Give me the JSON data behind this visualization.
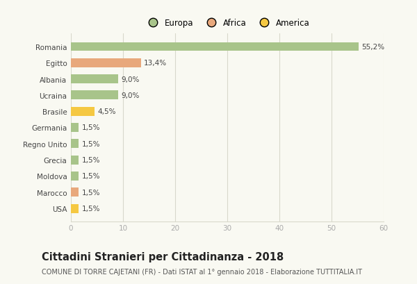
{
  "categories": [
    "Romania",
    "Egitto",
    "Albania",
    "Ucraina",
    "Brasile",
    "Germania",
    "Regno Unito",
    "Grecia",
    "Moldova",
    "Marocco",
    "USA"
  ],
  "values": [
    55.2,
    13.4,
    9.0,
    9.0,
    4.5,
    1.5,
    1.5,
    1.5,
    1.5,
    1.5,
    1.5
  ],
  "labels": [
    "55,2%",
    "13,4%",
    "9,0%",
    "9,0%",
    "4,5%",
    "1,5%",
    "1,5%",
    "1,5%",
    "1,5%",
    "1,5%",
    "1,5%"
  ],
  "colors": [
    "#a8c48a",
    "#e8a87c",
    "#a8c48a",
    "#a8c48a",
    "#f5c842",
    "#a8c48a",
    "#a8c48a",
    "#a8c48a",
    "#a8c48a",
    "#e8a87c",
    "#f5c842"
  ],
  "legend_labels": [
    "Europa",
    "Africa",
    "America"
  ],
  "legend_colors": [
    "#a8c48a",
    "#e8a87c",
    "#f5c842"
  ],
  "xlim": [
    0,
    60
  ],
  "xticks": [
    0,
    10,
    20,
    30,
    40,
    50,
    60
  ],
  "title": "Cittadini Stranieri per Cittadinanza - 2018",
  "subtitle": "COMUNE DI TORRE CAJETANI (FR) - Dati ISTAT al 1° gennaio 2018 - Elaborazione TUTTITALIA.IT",
  "background_color": "#f9f9f2",
  "grid_color": "#d8d8cc",
  "bar_height": 0.55,
  "label_fontsize": 7.5,
  "tick_fontsize": 7.5,
  "legend_fontsize": 8.5,
  "title_fontsize": 10.5,
  "subtitle_fontsize": 7
}
